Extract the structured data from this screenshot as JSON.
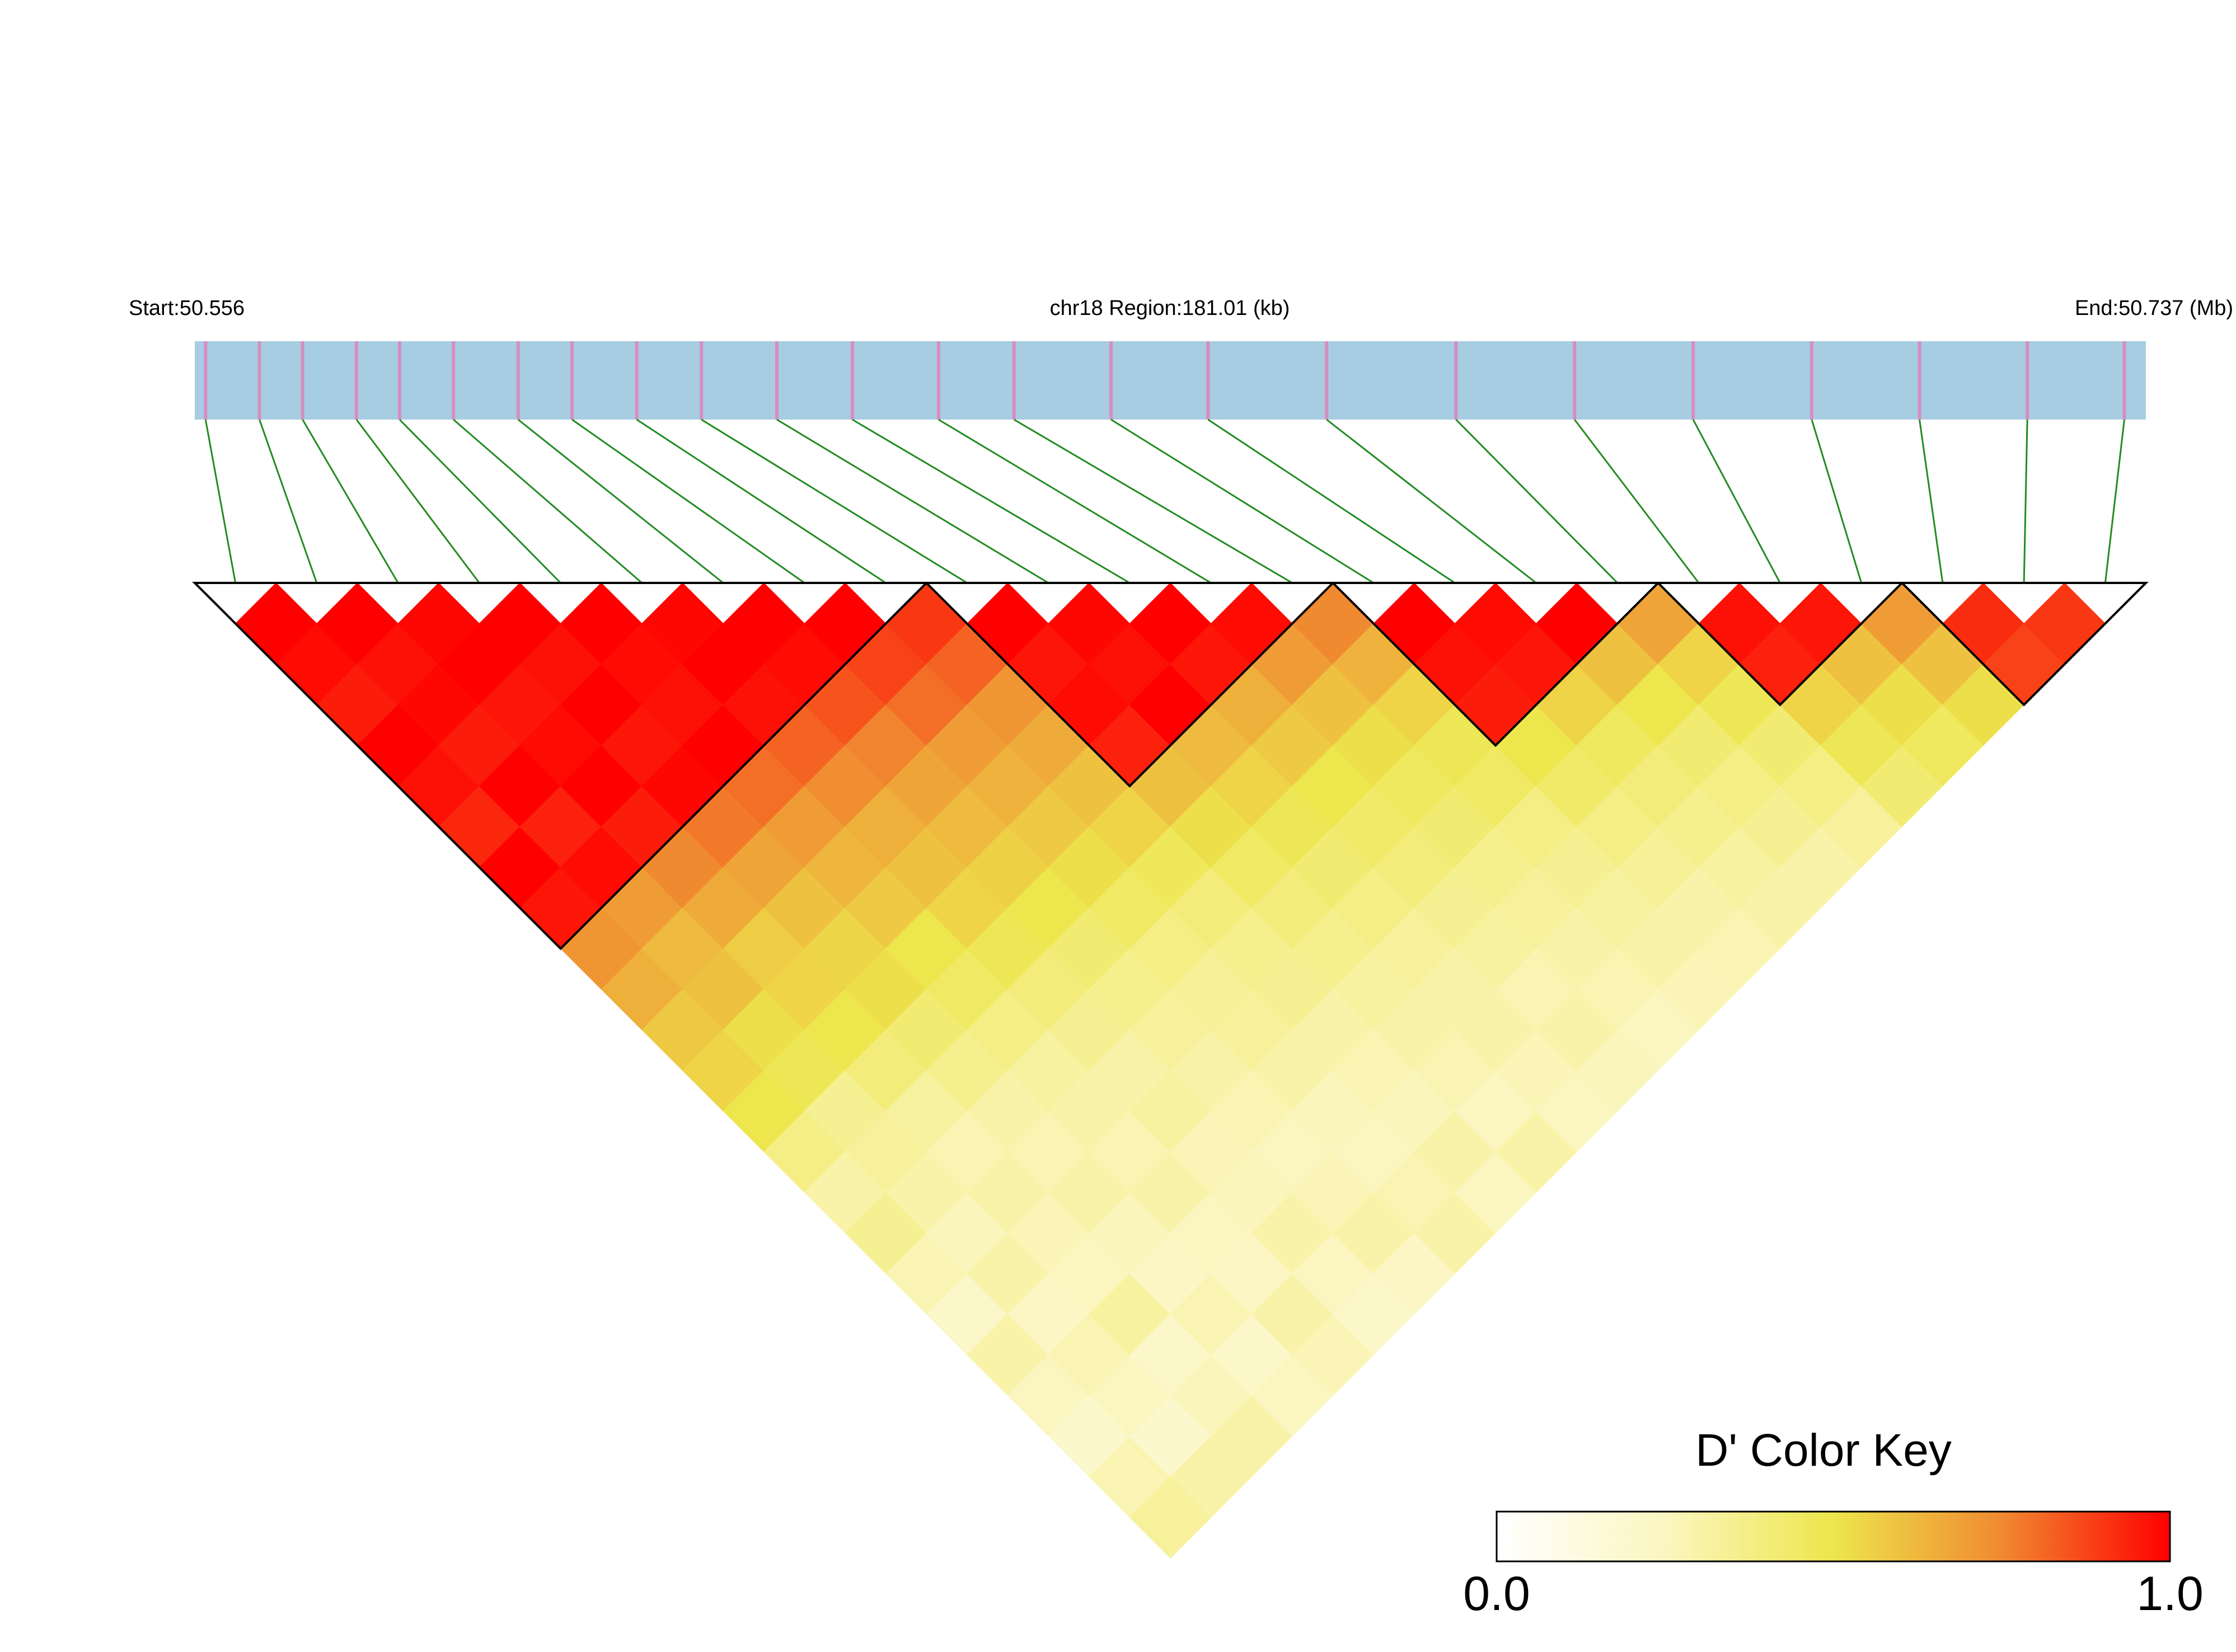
{
  "chart_data": {
    "type": "ld_heatmap",
    "start_label": "Start:50.556",
    "region_label": "chr18 Region:181.01 (kb)",
    "end_label": "End:50.737 (Mb)",
    "xlim": [
      50.556,
      50.737
    ],
    "snp_positions": [
      50.557,
      50.562,
      50.566,
      50.571,
      50.575,
      50.58,
      50.586,
      50.591,
      50.597,
      50.603,
      50.61,
      50.617,
      50.625,
      50.632,
      50.641,
      50.65,
      50.661,
      50.673,
      50.684,
      50.695,
      50.706,
      50.716,
      50.726,
      50.735
    ],
    "track_color": "#a6cde2",
    "snp_color": "#d98cc0",
    "connector_color": "#228b22",
    "block_color": "#000000",
    "ld_matrix": [
      [
        1,
        0.98,
        0.95,
        1,
        0.97,
        0.93,
        1,
        0.96,
        0.72,
        0.65,
        0.58,
        0.55,
        0.5,
        0.38,
        0.3,
        0.35,
        0.28,
        0.22,
        0.3,
        0.25,
        0.2,
        0.28,
        0.33
      ],
      [
        1,
        0.97,
        0.99,
        0.95,
        1,
        0.94,
        0.98,
        0.7,
        0.62,
        0.6,
        0.52,
        0.48,
        0.35,
        0.33,
        0.3,
        0.26,
        0.3,
        0.24,
        0.28,
        0.25,
        0.2,
        0.3
      ],
      [
        0.99,
        1,
        0.96,
        0.98,
        1,
        0.95,
        0.75,
        0.66,
        0.57,
        0.55,
        0.5,
        0.4,
        0.32,
        0.28,
        0.3,
        0.27,
        0.25,
        0.32,
        0.22,
        0.26,
        0.3
      ],
      [
        1,
        0.97,
        1,
        0.96,
        0.99,
        0.78,
        0.68,
        0.6,
        0.54,
        0.52,
        0.42,
        0.36,
        0.3,
        0.28,
        0.3,
        0.26,
        0.24,
        0.28,
        0.22,
        0.25
      ],
      [
        1,
        0.98,
        0.97,
        1,
        0.8,
        0.7,
        0.63,
        0.58,
        0.5,
        0.45,
        0.38,
        0.32,
        0.3,
        0.28,
        0.3,
        0.25,
        0.24,
        0.3,
        0.27
      ],
      [
        0.99,
        1,
        0.97,
        0.82,
        0.74,
        0.65,
        0.6,
        0.55,
        0.48,
        0.4,
        0.35,
        0.3,
        0.32,
        0.27,
        0.26,
        0.3,
        0.25,
        0.22
      ],
      [
        1,
        0.98,
        0.85,
        0.76,
        0.68,
        0.62,
        0.56,
        0.5,
        0.42,
        0.36,
        0.33,
        0.3,
        0.28,
        0.25,
        0.27,
        0.3,
        0.24
      ],
      [
        1,
        0.88,
        0.8,
        0.7,
        0.64,
        0.58,
        0.52,
        0.45,
        0.38,
        0.34,
        0.33,
        0.3,
        0.26,
        0.25,
        0.28,
        0.3
      ],
      [
        0.9,
        0.82,
        0.72,
        0.66,
        0.6,
        0.55,
        0.47,
        0.4,
        0.36,
        0.35,
        0.3,
        0.28,
        0.26,
        0.3,
        0.25
      ],
      [
        1,
        0.96,
        0.98,
        0.94,
        0.6,
        0.52,
        0.45,
        0.4,
        0.36,
        0.32,
        0.3,
        0.28,
        0.25,
        0.3
      ],
      [
        0.99,
        0.97,
        1,
        0.62,
        0.55,
        0.48,
        0.42,
        0.38,
        0.33,
        0.3,
        0.3,
        0.27,
        0.25
      ],
      [
        1,
        0.96,
        0.65,
        0.58,
        0.5,
        0.44,
        0.4,
        0.35,
        0.32,
        0.28,
        0.3,
        0.26
      ],
      [
        0.98,
        0.7,
        0.6,
        0.52,
        0.46,
        0.42,
        0.36,
        0.33,
        0.3,
        0.28,
        0.25
      ],
      [
        0.75,
        0.64,
        0.55,
        0.48,
        0.45,
        0.38,
        0.35,
        0.32,
        0.3,
        0.27
      ],
      [
        1,
        0.97,
        0.95,
        0.5,
        0.44,
        0.38,
        0.34,
        0.3,
        0.28
      ],
      [
        0.98,
        0.96,
        0.55,
        0.46,
        0.4,
        0.36,
        0.32,
        0.3
      ],
      [
        1,
        0.6,
        0.5,
        0.42,
        0.38,
        0.35,
        0.3
      ],
      [
        0.68,
        0.55,
        0.48,
        0.42,
        0.38,
        0.33
      ],
      [
        0.97,
        0.94,
        0.55,
        0.48,
        0.42
      ],
      [
        0.96,
        0.6,
        0.52,
        0.46
      ],
      [
        0.7,
        0.6,
        0.52
      ],
      [
        0.92,
        0.88
      ],
      [
        0.9
      ]
    ],
    "blocks": [
      [
        0,
        8
      ],
      [
        9,
        13
      ],
      [
        14,
        17
      ],
      [
        18,
        20
      ],
      [
        21,
        23
      ]
    ],
    "colors": [
      "#ffffff",
      "#fbf6c0",
      "#ede64c",
      "#f08a30",
      "#ff0000"
    ],
    "color_key": {
      "title": "D' Color Key",
      "range": [
        0,
        1
      ],
      "ticks": [
        {
          "value": 0,
          "label": "0.0"
        },
        {
          "value": 1,
          "label": "1.0"
        }
      ]
    }
  }
}
